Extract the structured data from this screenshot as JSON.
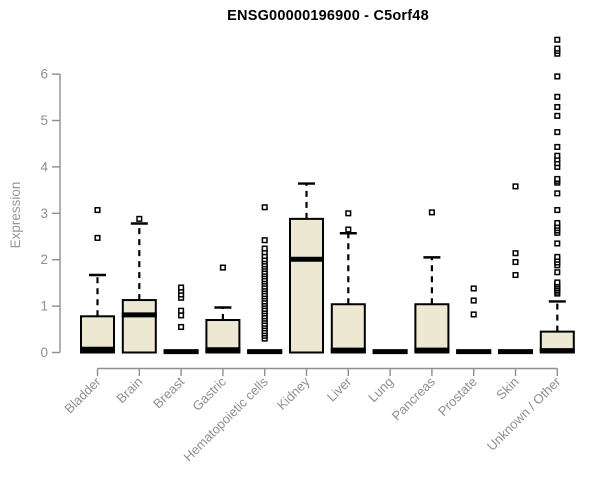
{
  "chart_data": {
    "type": "box",
    "title": "ENSG00000196900 - C5orf48",
    "ylabel": "Expression",
    "xlabel": "",
    "ylim": [
      0,
      6.9
    ],
    "yticks": [
      0,
      1,
      2,
      3,
      4,
      5,
      6
    ],
    "grid": false,
    "legend": "none",
    "colors": {
      "box_fill": "#EDE8D1",
      "box_border": "#000000",
      "median": "#000000",
      "whisker": "#000000",
      "outlier_stroke": "#000000",
      "outlier_fill": "#ffffff",
      "axis_line": "#8f8f8f",
      "axis_text": "#8f8f8f",
      "title_text": "#000000",
      "background": "#ffffff"
    },
    "categories": [
      "Bladder",
      "Brain",
      "Breast",
      "Gastric",
      "Hematopoietic cells",
      "Kidney",
      "Liver",
      "Lung",
      "Pancreas",
      "Prostate",
      "Skin",
      "Unknown / Other"
    ],
    "boxes": [
      {
        "name": "Bladder",
        "q1": 0,
        "median": 0.07,
        "q3": 0.78,
        "whisker_low": 0,
        "whisker_high": 1.67,
        "outliers": [
          2.47,
          3.07
        ]
      },
      {
        "name": "Brain",
        "q1": 0,
        "median": 0.81,
        "q3": 1.13,
        "whisker_low": 0,
        "whisker_high": 2.78,
        "outliers": [
          2.88
        ]
      },
      {
        "name": "Breast",
        "q1": 0,
        "median": 0.02,
        "q3": 0.04,
        "whisker_low": 0,
        "whisker_high": 0.04,
        "outliers": [
          0.55,
          0.8,
          0.9,
          1.18,
          1.25,
          1.33,
          1.4
        ]
      },
      {
        "name": "Gastric",
        "q1": 0,
        "median": 0.06,
        "q3": 0.7,
        "whisker_low": 0,
        "whisker_high": 0.97,
        "outliers": [
          1.83
        ]
      },
      {
        "name": "Hematopoietic cells",
        "q1": 0,
        "median": 0.02,
        "q3": 0.04,
        "whisker_low": 0,
        "whisker_high": 0.04,
        "outliers": [
          0.3,
          0.36,
          0.41,
          0.46,
          0.52,
          0.57,
          0.62,
          0.68,
          0.73,
          0.78,
          0.84,
          0.89,
          0.94,
          1.0,
          1.05,
          1.1,
          1.16,
          1.21,
          1.26,
          1.32,
          1.37,
          1.42,
          1.48,
          1.53,
          1.58,
          1.64,
          1.69,
          1.74,
          1.8,
          1.85,
          1.9,
          1.96,
          2.01,
          2.08,
          2.16,
          2.24,
          2.42,
          3.13
        ]
      },
      {
        "name": "Kidney",
        "q1": 0,
        "median": 2.01,
        "q3": 2.88,
        "whisker_low": 0,
        "whisker_high": 3.64,
        "outliers": []
      },
      {
        "name": "Liver",
        "q1": 0,
        "median": 0.05,
        "q3": 1.04,
        "whisker_low": 0,
        "whisker_high": 2.57,
        "outliers": [
          2.65,
          3.0
        ]
      },
      {
        "name": "Lung",
        "q1": 0,
        "median": 0.02,
        "q3": 0.04,
        "whisker_low": 0,
        "whisker_high": 0.04,
        "outliers": []
      },
      {
        "name": "Pancreas",
        "q1": 0,
        "median": 0.05,
        "q3": 1.04,
        "whisker_low": 0,
        "whisker_high": 2.05,
        "outliers": [
          3.02
        ]
      },
      {
        "name": "Prostate",
        "q1": 0,
        "median": 0.02,
        "q3": 0.04,
        "whisker_low": 0,
        "whisker_high": 0.04,
        "outliers": [
          0.82,
          1.12,
          1.38
        ]
      },
      {
        "name": "Skin",
        "q1": 0,
        "median": 0.02,
        "q3": 0.04,
        "whisker_low": 0,
        "whisker_high": 0.04,
        "outliers": [
          1.67,
          1.95,
          2.14,
          3.58
        ]
      },
      {
        "name": "Unknown / Other",
        "q1": 0,
        "median": 0.04,
        "q3": 0.45,
        "whisker_low": 0,
        "whisker_high": 1.1,
        "outliers": [
          1.27,
          1.31,
          1.35,
          1.39,
          1.43,
          1.47,
          1.51,
          1.73,
          1.88,
          1.94,
          2.0,
          2.06,
          2.35,
          2.58,
          2.63,
          2.68,
          2.73,
          2.79,
          3.07,
          3.43,
          3.66,
          3.7,
          3.74,
          4.0,
          4.08,
          4.16,
          4.24,
          4.43,
          4.75,
          5.1,
          5.29,
          5.51,
          5.95,
          6.44,
          6.5,
          6.55,
          6.74
        ]
      }
    ]
  }
}
